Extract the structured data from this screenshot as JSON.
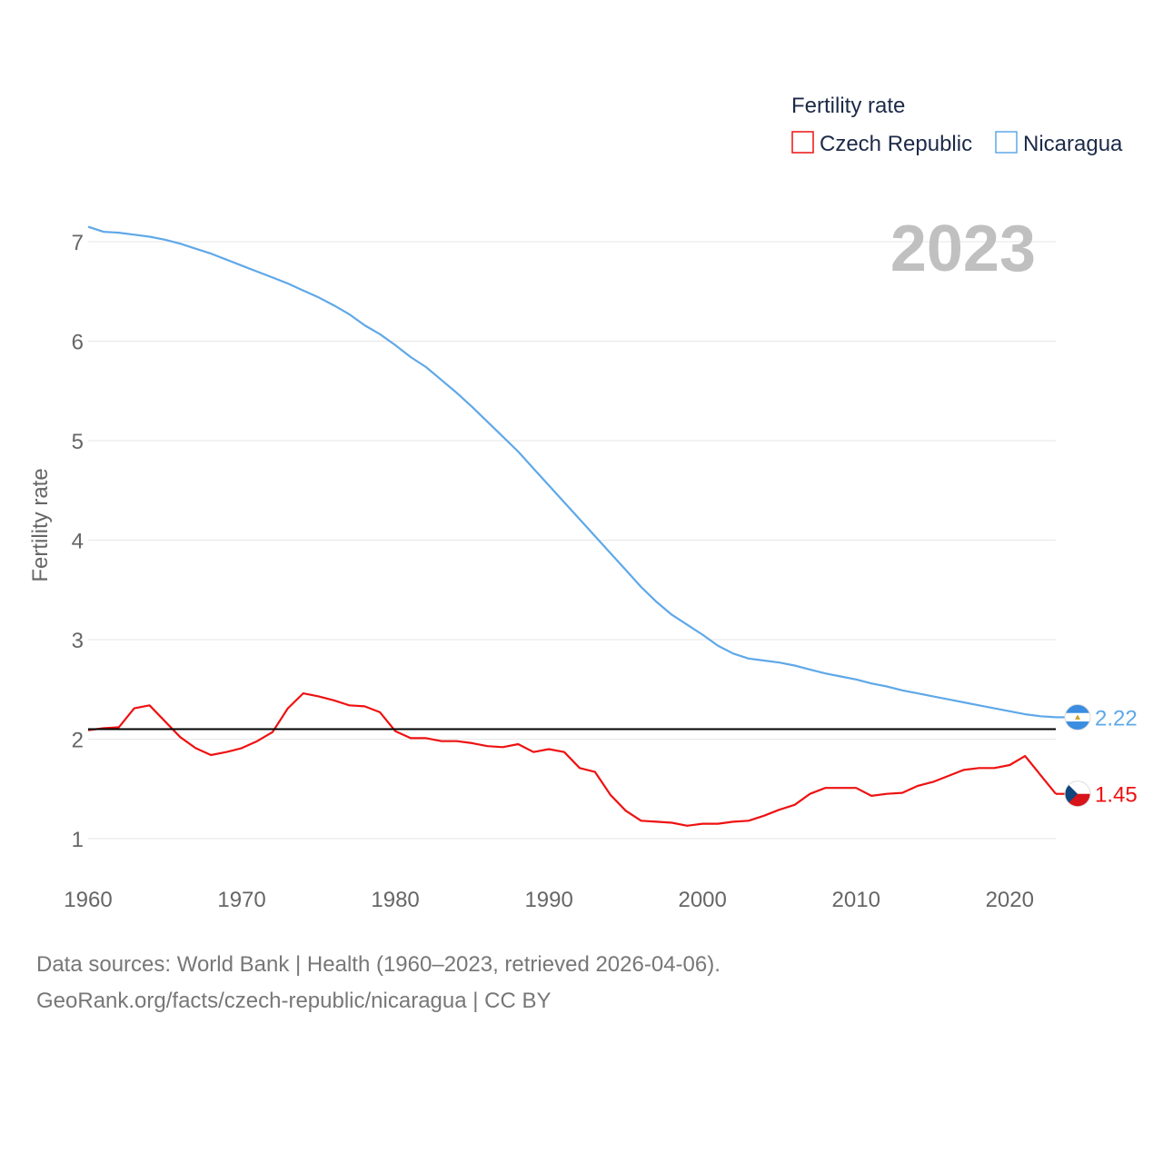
{
  "chart_data": {
    "type": "line",
    "title": "Fertility rate",
    "ylabel": "Fertility rate",
    "xlabel": "",
    "year_label": "2023",
    "xlim": [
      1960,
      2023
    ],
    "ylim": [
      0.6,
      7.4
    ],
    "x_ticks": [
      1960,
      1970,
      1980,
      1990,
      2000,
      2010,
      2020
    ],
    "y_ticks": [
      1,
      2,
      3,
      4,
      5,
      6,
      7
    ],
    "grid": true,
    "legend_position": "top-right",
    "reference_line": {
      "value": 2.1,
      "color": "#000000"
    },
    "x": [
      1960,
      1961,
      1962,
      1963,
      1964,
      1965,
      1966,
      1967,
      1968,
      1969,
      1970,
      1971,
      1972,
      1973,
      1974,
      1975,
      1976,
      1977,
      1978,
      1979,
      1980,
      1981,
      1982,
      1983,
      1984,
      1985,
      1986,
      1987,
      1988,
      1989,
      1990,
      1991,
      1992,
      1993,
      1994,
      1995,
      1996,
      1997,
      1998,
      1999,
      2000,
      2001,
      2002,
      2003,
      2004,
      2005,
      2006,
      2007,
      2008,
      2009,
      2010,
      2011,
      2012,
      2013,
      2014,
      2015,
      2016,
      2017,
      2018,
      2019,
      2020,
      2021,
      2022,
      2023
    ],
    "series": [
      {
        "name": "Czech Republic",
        "color": "#ee1111",
        "end_label": "1.45",
        "flag_icon": "czech-flag-icon",
        "values": [
          2.09,
          2.11,
          2.12,
          2.31,
          2.34,
          2.18,
          2.02,
          1.91,
          1.84,
          1.87,
          1.91,
          1.98,
          2.07,
          2.31,
          2.46,
          2.43,
          2.39,
          2.34,
          2.33,
          2.27,
          2.08,
          2.01,
          2.01,
          1.98,
          1.98,
          1.96,
          1.93,
          1.92,
          1.95,
          1.87,
          1.9,
          1.87,
          1.71,
          1.67,
          1.44,
          1.28,
          1.18,
          1.17,
          1.16,
          1.13,
          1.15,
          1.15,
          1.17,
          1.18,
          1.23,
          1.29,
          1.34,
          1.45,
          1.51,
          1.51,
          1.51,
          1.43,
          1.45,
          1.46,
          1.53,
          1.57,
          1.63,
          1.69,
          1.71,
          1.71,
          1.74,
          1.83,
          1.64,
          1.45
        ]
      },
      {
        "name": "Nicaragua",
        "color": "#5fa8e8",
        "end_label": "2.22",
        "flag_icon": "nicaragua-flag-icon",
        "values": [
          7.15,
          7.1,
          7.09,
          7.07,
          7.05,
          7.02,
          6.98,
          6.93,
          6.88,
          6.82,
          6.76,
          6.7,
          6.64,
          6.58,
          6.51,
          6.44,
          6.36,
          6.27,
          6.16,
          6.07,
          5.96,
          5.84,
          5.74,
          5.61,
          5.48,
          5.34,
          5.19,
          5.04,
          4.89,
          4.72,
          4.55,
          4.38,
          4.21,
          4.04,
          3.87,
          3.7,
          3.53,
          3.38,
          3.25,
          3.15,
          3.05,
          2.94,
          2.86,
          2.81,
          2.79,
          2.77,
          2.74,
          2.7,
          2.66,
          2.63,
          2.6,
          2.56,
          2.53,
          2.49,
          2.46,
          2.43,
          2.4,
          2.37,
          2.34,
          2.31,
          2.28,
          2.25,
          2.23,
          2.22
        ]
      }
    ]
  },
  "legend": {
    "title": "Fertility rate",
    "items": [
      "Czech Republic",
      "Nicaragua"
    ]
  },
  "footer": {
    "sources": "Data sources: World Bank | Health (1960–2023, retrieved 2026-04-06).",
    "attribution": "GeoRank.org/facts/czech-republic/nicaragua | CC BY"
  }
}
